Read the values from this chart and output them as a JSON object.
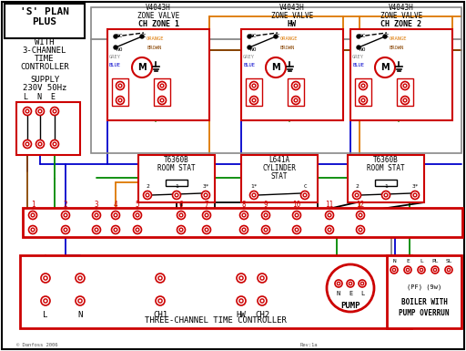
{
  "bg": "white",
  "RED": "#cc0000",
  "BLUE": "#0000cc",
  "GREEN": "#008800",
  "ORANGE": "#dd7700",
  "BROWN": "#884400",
  "GRAY": "#888888",
  "BLACK": "#000000",
  "DKGRAY": "#555555",
  "title_lines": [
    "'S' PLAN",
    "PLUS"
  ],
  "with_lines": [
    "WITH",
    "3-CHANNEL",
    "TIME",
    "CONTROLLER"
  ],
  "supply_lines": [
    "SUPPLY",
    "230V 50Hz"
  ],
  "lne": "L  N  E",
  "zv_labels": [
    "V4043H\nZONE VALVE\nCH ZONE 1",
    "V4043H\nZONE VALVE\nHW",
    "V4043H\nZONE VALVE\nCH ZONE 2"
  ],
  "stat_labels_1": [
    "T6360B",
    "ROOM STAT"
  ],
  "stat_labels_2": [
    "L641A",
    "CYLINDER",
    "STAT"
  ],
  "stat_labels_3": [
    "T6360B",
    "ROOM STAT"
  ],
  "terms_12": [
    1,
    2,
    3,
    4,
    5,
    6,
    7,
    8,
    9,
    10,
    11,
    12
  ],
  "ctrl_label": "THREE-CHANNEL TIME CONTROLLER",
  "bottom_labels": [
    "L",
    "N",
    "CH1",
    "HW",
    "CH2"
  ],
  "pump_terms": [
    "N",
    "E",
    "L"
  ],
  "boiler_terms": [
    "N",
    "E",
    "L",
    "PL",
    "SL"
  ],
  "pump_label": "PUMP",
  "boiler_label_1": "BOILER WITH",
  "boiler_label_2": "PUMP OVERRUN",
  "boiler_pf": "(PF) (9w)",
  "copyright": "© Danfoss 2006",
  "rev": "Rev:1a"
}
